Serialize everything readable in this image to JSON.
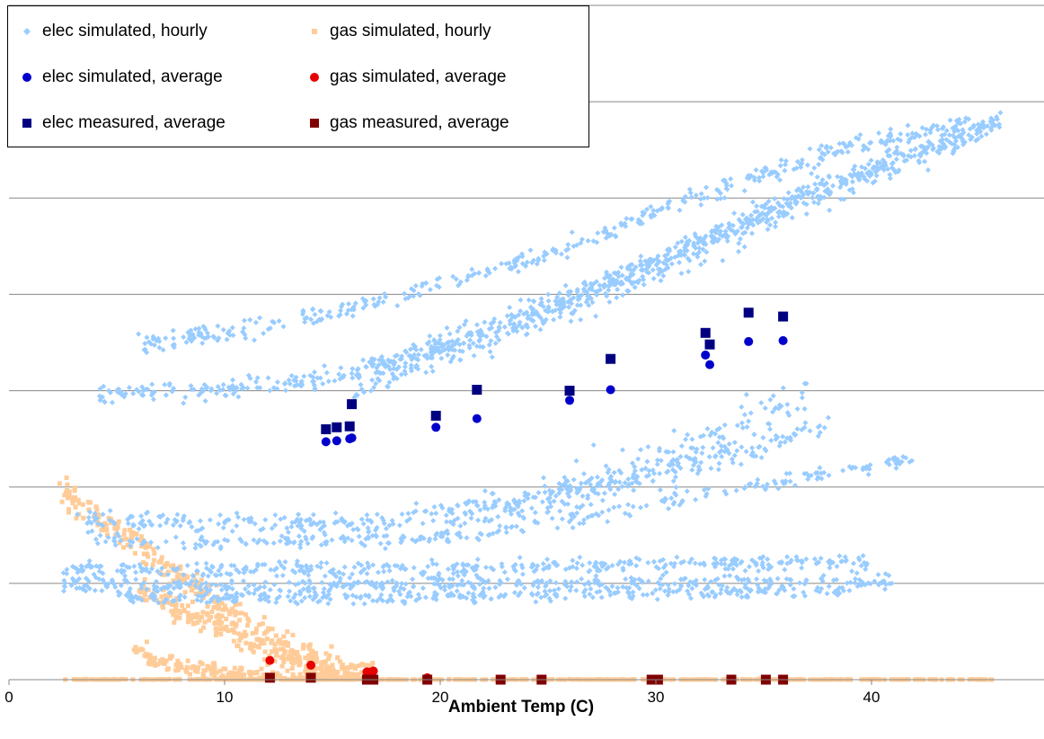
{
  "chart_data": {
    "type": "scatter",
    "title": "",
    "xlabel": "Ambient Temp (C)",
    "ylabel": "",
    "xlim": [
      0,
      48
    ],
    "xticks": [
      0,
      10,
      20,
      30,
      40
    ],
    "xtick_labels": [
      "0",
      "10",
      "20",
      "30",
      "40"
    ],
    "ylim": [
      0,
      7
    ],
    "y_gridlines": [
      1,
      2,
      3,
      4,
      5,
      6,
      7
    ],
    "y_tick_labels_visible": false,
    "grid": "horizontal",
    "legend_position": "top-left",
    "colors": {
      "elec_hourly": "#99ccff",
      "gas_hourly": "#ffcc99",
      "elec_sim_avg": "#0000cc",
      "gas_sim_avg": "#e60000",
      "elec_meas_avg": "#000080",
      "gas_meas_avg": "#800000"
    },
    "series": [
      {
        "name": "elec simulated, hourly",
        "marker": "diamond",
        "color": "#99ccff",
        "bands": [
          {
            "x": [
              4.2,
              8.0,
              14.0,
              20.0,
              26.0,
              32.0,
              38.0,
              46.0
            ],
            "y": [
              2.97,
              2.99,
              3.1,
              3.45,
              3.95,
              4.55,
              5.15,
              5.75
            ],
            "spread": 0.05,
            "n": 520
          },
          {
            "x": [
              6.0,
              10.0,
              15.0,
              20.0,
              26.0,
              33.0,
              40.0,
              46.0
            ],
            "y": [
              3.5,
              3.6,
              3.8,
              4.1,
              4.5,
              5.1,
              5.6,
              5.78
            ],
            "spread": 0.05,
            "n": 420
          },
          {
            "x": [
              16.0,
              20.0,
              26.0,
              32.0,
              38.0,
              45.0
            ],
            "y": [
              3.05,
              3.4,
              3.9,
              4.5,
              5.1,
              5.75
            ],
            "spread": 0.1,
            "n": 520
          },
          {
            "x": [
              3.0,
              10.0,
              17.0,
              22.0,
              28.0,
              34.0,
              38.0
            ],
            "y": [
              1.65,
              1.63,
              1.63,
              1.8,
              2.05,
              2.35,
              2.65
            ],
            "spread": 0.05,
            "n": 340
          },
          {
            "x": [
              4.0,
              10.0,
              18.0,
              25.0,
              33.0,
              42.0
            ],
            "y": [
              1.44,
              1.43,
              1.45,
              1.6,
              1.95,
              2.3
            ],
            "spread": 0.04,
            "n": 260
          },
          {
            "x": [
              2.5,
              10.0,
              20.0,
              30.0,
              40.0
            ],
            "y": [
              1.15,
              1.14,
              1.16,
              1.2,
              1.22
            ],
            "spread": 0.04,
            "n": 380
          },
          {
            "x": [
              2.5,
              10.0,
              20.0,
              30.0,
              41.0
            ],
            "y": [
              0.98,
              0.97,
              0.99,
              1.0,
              1.02
            ],
            "spread": 0.04,
            "n": 380
          },
          {
            "x": [
              5.0,
              10.0,
              20.0,
              30.0,
              39.0
            ],
            "y": [
              0.86,
              0.85,
              0.86,
              0.89,
              0.92
            ],
            "spread": 0.03,
            "n": 300
          },
          {
            "x": [
              20.0,
              26.0,
              32.0,
              37.0
            ],
            "y": [
              1.6,
              1.95,
              2.4,
              2.9
            ],
            "spread": 0.15,
            "n": 220
          }
        ]
      },
      {
        "name": "gas simulated, hourly",
        "marker": "square",
        "color": "#ffcc99",
        "bands": [
          {
            "x": [
              2.3,
              4.0,
              6.0,
              8.0,
              10.0,
              12.0,
              14.0,
              16.0,
              17.0
            ],
            "y": [
              2.0,
              1.7,
              1.4,
              1.05,
              0.7,
              0.45,
              0.22,
              0.06,
              0.01
            ],
            "spread": 0.08,
            "n": 320
          },
          {
            "x": [
              6.0,
              8.0,
              10.0,
              12.0,
              14.0,
              16.5
            ],
            "y": [
              0.95,
              0.72,
              0.5,
              0.3,
              0.15,
              0.02
            ],
            "spread": 0.06,
            "n": 220
          },
          {
            "x": [
              5.8,
              7.0,
              8.5,
              10.0,
              12.0,
              14.0,
              16.0
            ],
            "y": [
              0.35,
              0.2,
              0.12,
              0.07,
              0.04,
              0.02,
              0.01
            ],
            "spread": 0.04,
            "n": 200
          },
          {
            "x": [
              2.5,
              46.0
            ],
            "y": [
              0.0,
              0.0
            ],
            "spread": 0.003,
            "n": 420
          }
        ]
      },
      {
        "name": "elec simulated, average",
        "marker": "circle",
        "color": "#0000cc",
        "points": [
          [
            14.7,
            2.47
          ],
          [
            15.2,
            2.48
          ],
          [
            15.8,
            2.5
          ],
          [
            15.9,
            2.51
          ],
          [
            19.8,
            2.62
          ],
          [
            21.7,
            2.71
          ],
          [
            26.0,
            2.9
          ],
          [
            27.9,
            3.01
          ],
          [
            32.3,
            3.37
          ],
          [
            32.5,
            3.27
          ],
          [
            34.3,
            3.51
          ],
          [
            35.9,
            3.52
          ]
        ]
      },
      {
        "name": "elec measured, average",
        "marker": "square",
        "color": "#000080",
        "points": [
          [
            14.7,
            2.6
          ],
          [
            15.2,
            2.62
          ],
          [
            15.8,
            2.63
          ],
          [
            15.9,
            2.86
          ],
          [
            19.8,
            2.74
          ],
          [
            21.7,
            3.01
          ],
          [
            26.0,
            3.0
          ],
          [
            27.9,
            3.33
          ],
          [
            32.3,
            3.6
          ],
          [
            32.5,
            3.48
          ],
          [
            34.3,
            3.81
          ],
          [
            35.9,
            3.77
          ]
        ]
      },
      {
        "name": "gas simulated, average",
        "marker": "circle",
        "color": "#e60000",
        "points": [
          [
            12.1,
            0.2
          ],
          [
            14.0,
            0.15
          ],
          [
            16.6,
            0.08
          ],
          [
            16.8,
            0.08
          ],
          [
            16.9,
            0.09
          ],
          [
            19.4,
            0.02
          ]
        ]
      },
      {
        "name": "gas measured, average",
        "marker": "square",
        "color": "#800000",
        "points": [
          [
            12.1,
            0.02
          ],
          [
            14.0,
            0.02
          ],
          [
            16.6,
            0.0
          ],
          [
            16.9,
            0.0
          ],
          [
            19.4,
            0.0
          ],
          [
            22.8,
            0.0
          ],
          [
            24.7,
            0.0
          ],
          [
            29.8,
            0.0
          ],
          [
            30.1,
            0.0
          ],
          [
            33.5,
            0.0
          ],
          [
            35.1,
            0.0
          ],
          [
            35.9,
            0.0
          ]
        ]
      }
    ]
  },
  "legend": {
    "items": [
      {
        "label": "elec simulated, hourly",
        "marker": "diamond",
        "color": "#99ccff"
      },
      {
        "label": "gas simulated, hourly",
        "marker": "square-small",
        "color": "#ffcc99"
      },
      {
        "label": "elec simulated, average",
        "marker": "circle",
        "color": "#0000cc"
      },
      {
        "label": "gas simulated, average",
        "marker": "circle",
        "color": "#e60000"
      },
      {
        "label": "elec measured, average",
        "marker": "square",
        "color": "#000080"
      },
      {
        "label": "gas measured, average",
        "marker": "square",
        "color": "#800000"
      }
    ]
  }
}
